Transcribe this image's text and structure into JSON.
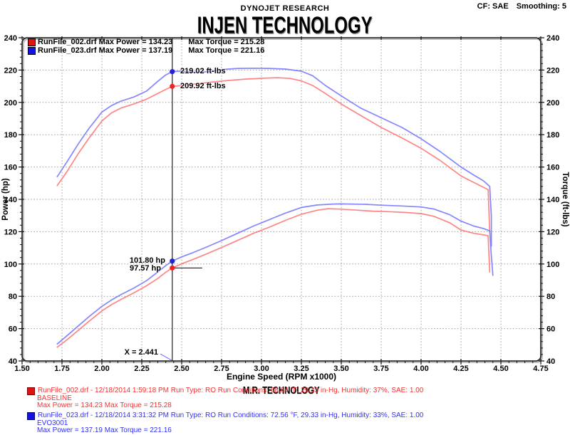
{
  "header": {
    "brand": "DYNOJET RESEARCH",
    "cf": "CF: SAE",
    "smoothing": "Smoothing: 5",
    "title": "INJEN TECHNOLOGY"
  },
  "legend": {
    "runs": [
      {
        "name_power": "RunFile_002.drf Max Power = 134.23",
        "torque": "Max Torque = 215.28",
        "color": "#e31212"
      },
      {
        "name_power": "RunFile_023.drf Max Power = 137.19",
        "torque": "Max Torque = 221.16",
        "color": "#1212e3"
      }
    ]
  },
  "cursor": {
    "label": "X = 2.441",
    "blue_torque": "219.02 ft-lbs",
    "red_torque": "209.92 ft-lbs",
    "blue_power": "101.80 hp",
    "red_power": "97.57 hp"
  },
  "footer": {
    "brand2": "M.R. TECHNOLOGY",
    "runs": [
      {
        "line1": "RunFile_002.drf - 12/18/2014 1:59:18 PM  Run Type: RO  Run Conditions: 68.84 °F, 29.33 in-Hg,  Humidity:  37%, SAE: 1.00",
        "line2": "BASELINE",
        "line3": "Max Power = 134.23  Max Torque = 215.28"
      },
      {
        "line1": "RunFile_023.drf - 12/18/2014 3:31:32 PM  Run Type: RO  Run Conditions: 72.56 °F, 29.33 in-Hg,  Humidity:  33%, SAE: 1.00",
        "line2": "EVO3001",
        "line3": "Max Power = 137.19  Max Torque = 221.16"
      }
    ]
  },
  "chart_data": {
    "type": "line",
    "title": "INJEN TECHNOLOGY",
    "xlabel": "Engine Speed (RPM x1000)",
    "ylabel_left": "Power (hp)",
    "ylabel_right": "Torque (ft-lbs)",
    "xlim": [
      1.5,
      4.75
    ],
    "ylim": [
      40,
      240
    ],
    "x_ticks": [
      1.5,
      1.75,
      2.0,
      2.25,
      2.5,
      2.75,
      3.0,
      3.25,
      3.5,
      3.75,
      4.0,
      4.25,
      4.5,
      4.75
    ],
    "x_tick_labels": [
      "1.50",
      "1.75",
      "2.00",
      "2.25",
      "2.50",
      "2.75",
      "3.00",
      "3.25",
      "3.50",
      "3.75",
      "4.00",
      "4.25",
      "4.50",
      "4.75"
    ],
    "y_ticks": [
      40,
      60,
      80,
      100,
      120,
      140,
      160,
      180,
      200,
      220,
      240
    ],
    "y_tick_labels": [
      "40",
      "60",
      "80",
      "100",
      "120",
      "140",
      "160",
      "180",
      "200",
      "220",
      "240"
    ],
    "x_minor_step": 0.05,
    "y_minor_step": 4,
    "grid": true,
    "legend_position": "top-left",
    "cursor_x": 2.441,
    "cursor_points": [
      {
        "x": 2.441,
        "y": 219.02,
        "color": "#2222dd",
        "label": "219.02 ft-lbs"
      },
      {
        "x": 2.441,
        "y": 209.92,
        "color": "#ee2222",
        "label": "209.92 ft-lbs"
      },
      {
        "x": 2.441,
        "y": 101.8,
        "color": "#2222dd",
        "label": "101.80 hp"
      },
      {
        "x": 2.441,
        "y": 97.57,
        "color": "#ee2222",
        "label": "97.57 hp"
      }
    ],
    "series": [
      {
        "name": "RunFile_023.drf Torque (EVO3001)",
        "unit": "ft-lbs",
        "color": "#7070ff",
        "max": 221.16,
        "points": [
          [
            1.72,
            154
          ],
          [
            1.78,
            163
          ],
          [
            1.85,
            174
          ],
          [
            1.92,
            184
          ],
          [
            2.0,
            194
          ],
          [
            2.06,
            198
          ],
          [
            2.12,
            200.8
          ],
          [
            2.2,
            203.3
          ],
          [
            2.28,
            207
          ],
          [
            2.35,
            213
          ],
          [
            2.4,
            217
          ],
          [
            2.441,
            219.02
          ],
          [
            2.5,
            219.4
          ],
          [
            2.57,
            218.6
          ],
          [
            2.65,
            218.9
          ],
          [
            2.75,
            220.3
          ],
          [
            2.85,
            221.0
          ],
          [
            2.95,
            221.16
          ],
          [
            3.05,
            221.0
          ],
          [
            3.15,
            220.6
          ],
          [
            3.25,
            219.3
          ],
          [
            3.32,
            216.5
          ],
          [
            3.4,
            210.5
          ],
          [
            3.5,
            204
          ],
          [
            3.62,
            196.5
          ],
          [
            3.75,
            190.5
          ],
          [
            3.88,
            184.5
          ],
          [
            4.0,
            177.5
          ],
          [
            4.12,
            169.5
          ],
          [
            4.25,
            160
          ],
          [
            4.33,
            155
          ],
          [
            4.39,
            151.5
          ],
          [
            4.43,
            148
          ],
          [
            4.44,
            130
          ],
          [
            4.44,
            111
          ]
        ]
      },
      {
        "name": "RunFile_002.drf Torque (BASELINE)",
        "unit": "ft-lbs",
        "color": "#ff7070",
        "max": 215.28,
        "points": [
          [
            1.72,
            148.5
          ],
          [
            1.78,
            157
          ],
          [
            1.85,
            168
          ],
          [
            1.92,
            178
          ],
          [
            2.0,
            188.5
          ],
          [
            2.06,
            193.5
          ],
          [
            2.12,
            196.5
          ],
          [
            2.2,
            199
          ],
          [
            2.28,
            202
          ],
          [
            2.35,
            205.5
          ],
          [
            2.4,
            208
          ],
          [
            2.441,
            209.92
          ],
          [
            2.5,
            210.4
          ],
          [
            2.6,
            211.6
          ],
          [
            2.7,
            212.7
          ],
          [
            2.8,
            213.6
          ],
          [
            2.9,
            214.4
          ],
          [
            3.0,
            214.9
          ],
          [
            3.1,
            215.28
          ],
          [
            3.18,
            214.8
          ],
          [
            3.25,
            213.3
          ],
          [
            3.32,
            210.5
          ],
          [
            3.4,
            205.5
          ],
          [
            3.5,
            199
          ],
          [
            3.62,
            192
          ],
          [
            3.75,
            184.5
          ],
          [
            3.88,
            178
          ],
          [
            4.0,
            171.6
          ],
          [
            4.12,
            164
          ],
          [
            4.25,
            154.5
          ],
          [
            4.33,
            150.5
          ],
          [
            4.39,
            147.5
          ],
          [
            4.42,
            146
          ],
          [
            4.43,
            120
          ]
        ]
      },
      {
        "name": "RunFile_023.drf Power (EVO3001)",
        "unit": "hp",
        "color": "#7070ff",
        "max": 137.19,
        "points": [
          [
            1.72,
            50.5
          ],
          [
            1.78,
            55.5
          ],
          [
            1.85,
            61.5
          ],
          [
            1.92,
            67.5
          ],
          [
            2.0,
            73.8
          ],
          [
            2.06,
            77.7
          ],
          [
            2.12,
            81.1
          ],
          [
            2.2,
            85.1
          ],
          [
            2.28,
            89.7
          ],
          [
            2.35,
            95
          ],
          [
            2.4,
            99
          ],
          [
            2.441,
            101.8
          ],
          [
            2.5,
            104.4
          ],
          [
            2.57,
            107
          ],
          [
            2.65,
            110.2
          ],
          [
            2.75,
            114.5
          ],
          [
            2.85,
            119
          ],
          [
            2.95,
            123.5
          ],
          [
            3.05,
            127.5
          ],
          [
            3.15,
            131.5
          ],
          [
            3.25,
            135
          ],
          [
            3.35,
            136.5
          ],
          [
            3.45,
            137.1
          ],
          [
            3.5,
            137.19
          ],
          [
            3.65,
            136.9
          ],
          [
            3.75,
            136.4
          ],
          [
            3.88,
            135.9
          ],
          [
            4.0,
            135.3
          ],
          [
            4.08,
            134
          ],
          [
            4.18,
            130.5
          ],
          [
            4.25,
            126.5
          ],
          [
            4.33,
            123.5
          ],
          [
            4.39,
            122
          ],
          [
            4.43,
            120.5
          ],
          [
            4.44,
            105
          ],
          [
            4.45,
            93
          ]
        ]
      },
      {
        "name": "RunFile_002.drf Power (BASELINE)",
        "unit": "hp",
        "color": "#ff7070",
        "max": 134.23,
        "points": [
          [
            1.72,
            48.5
          ],
          [
            1.78,
            53
          ],
          [
            1.85,
            58.8
          ],
          [
            1.92,
            64.6
          ],
          [
            2.0,
            71
          ],
          [
            2.06,
            74.8
          ],
          [
            2.12,
            78.1
          ],
          [
            2.2,
            82.1
          ],
          [
            2.28,
            86.5
          ],
          [
            2.35,
            91
          ],
          [
            2.4,
            94.9
          ],
          [
            2.441,
            97.57
          ],
          [
            2.5,
            100.1
          ],
          [
            2.57,
            102.8
          ],
          [
            2.65,
            106
          ],
          [
            2.75,
            110.2
          ],
          [
            2.85,
            114.6
          ],
          [
            2.95,
            119
          ],
          [
            3.05,
            122.8
          ],
          [
            3.15,
            127
          ],
          [
            3.25,
            130.8
          ],
          [
            3.35,
            133.3
          ],
          [
            3.42,
            134.23
          ],
          [
            3.5,
            133.9
          ],
          [
            3.6,
            133.3
          ],
          [
            3.7,
            132.7
          ],
          [
            3.8,
            132.4
          ],
          [
            3.9,
            131.9
          ],
          [
            4.0,
            131.2
          ],
          [
            4.08,
            129.5
          ],
          [
            4.18,
            125.5
          ],
          [
            4.25,
            121
          ],
          [
            4.33,
            119
          ],
          [
            4.39,
            118
          ],
          [
            4.42,
            117.5
          ],
          [
            4.43,
            95
          ]
        ]
      }
    ]
  }
}
